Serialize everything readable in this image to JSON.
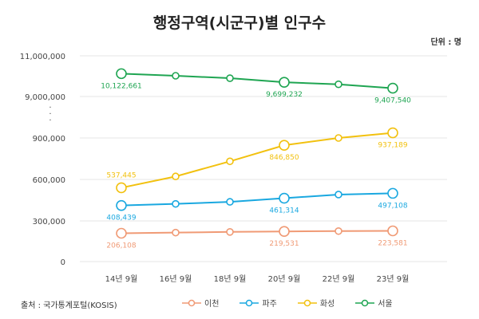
{
  "header": {
    "title": "행정구역(시군구)별 인구수",
    "unit": "단위 : 명"
  },
  "footer": {
    "source": "출처 : 국가통계포털(KOSIS)"
  },
  "chart_data": {
    "type": "line",
    "title": "행정구역(시군구)별 인구수",
    "xlabel": "",
    "ylabel": "",
    "x": [
      "14년 9월",
      "16년 9월",
      "18년 9월",
      "20년 9월",
      "22년 9월",
      "23년 9월"
    ],
    "y_axis": {
      "broken": true,
      "lower_ticks": [
        "0",
        "300,000",
        "600,000",
        "900,000"
      ],
      "upper_ticks": [
        "9,000,000",
        "11,000,000"
      ],
      "break_marker": "·\n·\n·"
    },
    "grid": "horizontal",
    "legend_position": "bottom",
    "series": [
      {
        "name": "이천",
        "color": "#F09A75",
        "values": [
          206108,
          211000,
          216000,
          219531,
          222000,
          223581
        ],
        "labels": [
          "206,108",
          "",
          "",
          "219,531",
          "",
          "223,581"
        ]
      },
      {
        "name": "파주",
        "color": "#1AA8E0",
        "values": [
          408439,
          420000,
          435000,
          461314,
          488000,
          497108
        ],
        "labels": [
          "408,439",
          "",
          "",
          "461,314",
          "",
          "497,108"
        ]
      },
      {
        "name": "화성",
        "color": "#F2C10F",
        "values": [
          537445,
          620000,
          730000,
          846850,
          900000,
          937189
        ],
        "labels": [
          "537,445",
          "",
          "",
          "846,850",
          "",
          "937,189"
        ]
      },
      {
        "name": "서울",
        "color": "#1FA552",
        "values": [
          10122661,
          10020000,
          9900000,
          9699232,
          9600000,
          9407540
        ],
        "labels": [
          "10,122,661",
          "",
          "",
          "9,699,232",
          "",
          "9,407,540"
        ]
      }
    ]
  }
}
